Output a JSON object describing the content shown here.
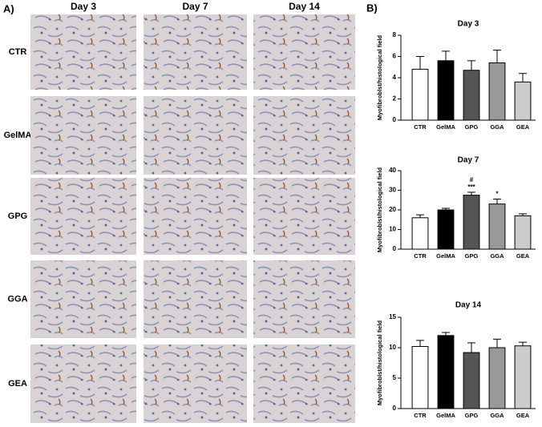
{
  "panel_labels": [
    "A)",
    "B)"
  ],
  "panel_a": {
    "columns": [
      "Day 3",
      "Day 7",
      "Day 14"
    ],
    "rows": [
      "CTR",
      "GelMA",
      "GPG",
      "GGA",
      "GEA"
    ]
  },
  "chart_data": [
    {
      "type": "bar",
      "title": "Day 3",
      "y_label": "Myofibroblst/histological field",
      "categories": [
        "CTR",
        "GelMA",
        "GPG",
        "GGA",
        "GEA"
      ],
      "values": [
        4.8,
        5.6,
        4.7,
        5.4,
        3.6
      ],
      "errors": [
        1.2,
        0.9,
        0.9,
        1.2,
        0.8
      ],
      "colors": [
        "#ffffff",
        "#000000",
        "#555555",
        "#999999",
        "#cccccc"
      ],
      "ylim": [
        0,
        8
      ],
      "yticks": [
        0,
        2,
        4,
        6,
        8
      ]
    },
    {
      "type": "bar",
      "title": "Day 7",
      "y_label": "Myofibroblst/histological field",
      "categories": [
        "CTR",
        "GelMA",
        "GPG",
        "GGA",
        "GEA"
      ],
      "values": [
        16,
        20,
        27.5,
        23,
        17
      ],
      "errors": [
        1.5,
        0.8,
        1.5,
        2.5,
        1
      ],
      "colors": [
        "#ffffff",
        "#000000",
        "#555555",
        "#999999",
        "#cccccc"
      ],
      "bar_labels": [
        null,
        null,
        [
          "#",
          "***"
        ],
        [
          "*"
        ],
        null
      ],
      "ylim": [
        0,
        40
      ],
      "yticks": [
        0,
        10,
        20,
        30,
        40
      ]
    },
    {
      "type": "bar",
      "title": "Day 14",
      "y_label": "Myofibroblst/histological field",
      "categories": [
        "CTR",
        "GelMA",
        "GPG",
        "GGA",
        "GEA"
      ],
      "values": [
        10.2,
        12,
        9.2,
        10,
        10.3
      ],
      "errors": [
        1,
        0.5,
        1.6,
        1.4,
        0.6
      ],
      "colors": [
        "#ffffff",
        "#000000",
        "#555555",
        "#999999",
        "#cccccc"
      ],
      "ylim": [
        0,
        15
      ],
      "yticks": [
        0,
        5,
        10,
        15
      ]
    }
  ]
}
